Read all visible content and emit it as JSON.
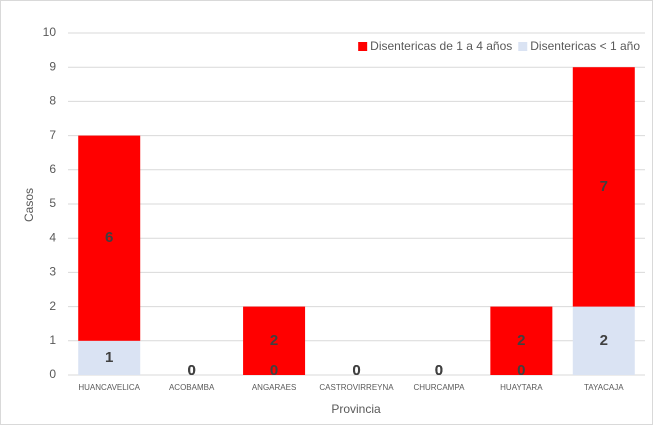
{
  "chart_data": {
    "type": "bar",
    "stacked": true,
    "categories": [
      "HUANCAVELICA",
      "ACOBAMBA",
      "ANGARAES",
      "CASTROVIRREYNA",
      "CHURCAMPA",
      "HUAYTARA",
      "TAYACAJA"
    ],
    "series": [
      {
        "name": "Disentericas de 1 a 4 años",
        "color": "#ff0000",
        "values": [
          6,
          0,
          2,
          0,
          0,
          2,
          7
        ]
      },
      {
        "name": "Disentericas < 1 año",
        "color": "#dae3f3",
        "values": [
          1,
          0,
          0,
          0,
          0,
          0,
          2
        ]
      }
    ],
    "ylim": [
      0,
      10
    ],
    "yticks": [
      0,
      1,
      2,
      3,
      4,
      5,
      6,
      7,
      8,
      9,
      10
    ],
    "grid": true,
    "y_label": "Casos",
    "x_label": "Provincia",
    "legend": "top-right"
  }
}
